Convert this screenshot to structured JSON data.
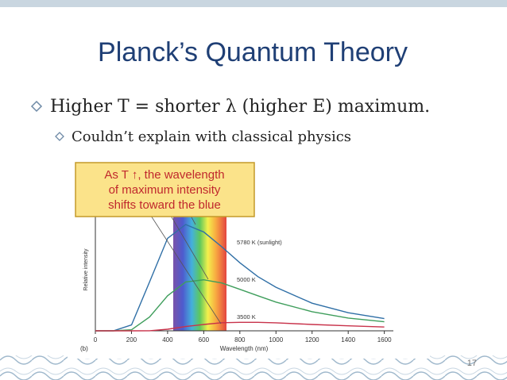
{
  "title": "Planck’s Quantum Theory",
  "bullets": [
    "Higher T = shorter λ (higher E) maximum.",
    "Couldn’t explain with classical physics"
  ],
  "figure": {
    "type": "line",
    "callout": [
      "As T ↑, the wavelength",
      "of maximum intensity",
      "shifts toward the blue"
    ],
    "panel_label": "(b)",
    "x_label": "Wavelength (nm)",
    "y_label": "Relative intensity",
    "x": [
      0,
      100,
      200,
      300,
      400,
      500,
      600,
      700,
      800,
      900,
      1000,
      1200,
      1400,
      1600
    ],
    "xlim": [
      0,
      1650
    ],
    "xticks": [
      0,
      200,
      400,
      600,
      800,
      1000,
      1200,
      1400,
      1600
    ],
    "ylim": [
      0,
      100
    ],
    "series": [
      {
        "name": "5780 K (sunlight)",
        "color": "#2f6fa6",
        "values": [
          0,
          0,
          5.5,
          46,
          87,
          100,
          93,
          79,
          64,
          51,
          41,
          26,
          17,
          11.5
        ]
      },
      {
        "name": "5000 K",
        "color": "#3f9e5c",
        "values": [
          0,
          0,
          1,
          13,
          33,
          46,
          48,
          45,
          39,
          33,
          27,
          18,
          12,
          8.5
        ]
      },
      {
        "name": "3500 K",
        "color": "#c8324a",
        "values": [
          0,
          0,
          0,
          0.1,
          1.5,
          4,
          6,
          7.6,
          8,
          8,
          7.5,
          6,
          4.7,
          3.6
        ]
      }
    ]
  },
  "page_number": "17"
}
